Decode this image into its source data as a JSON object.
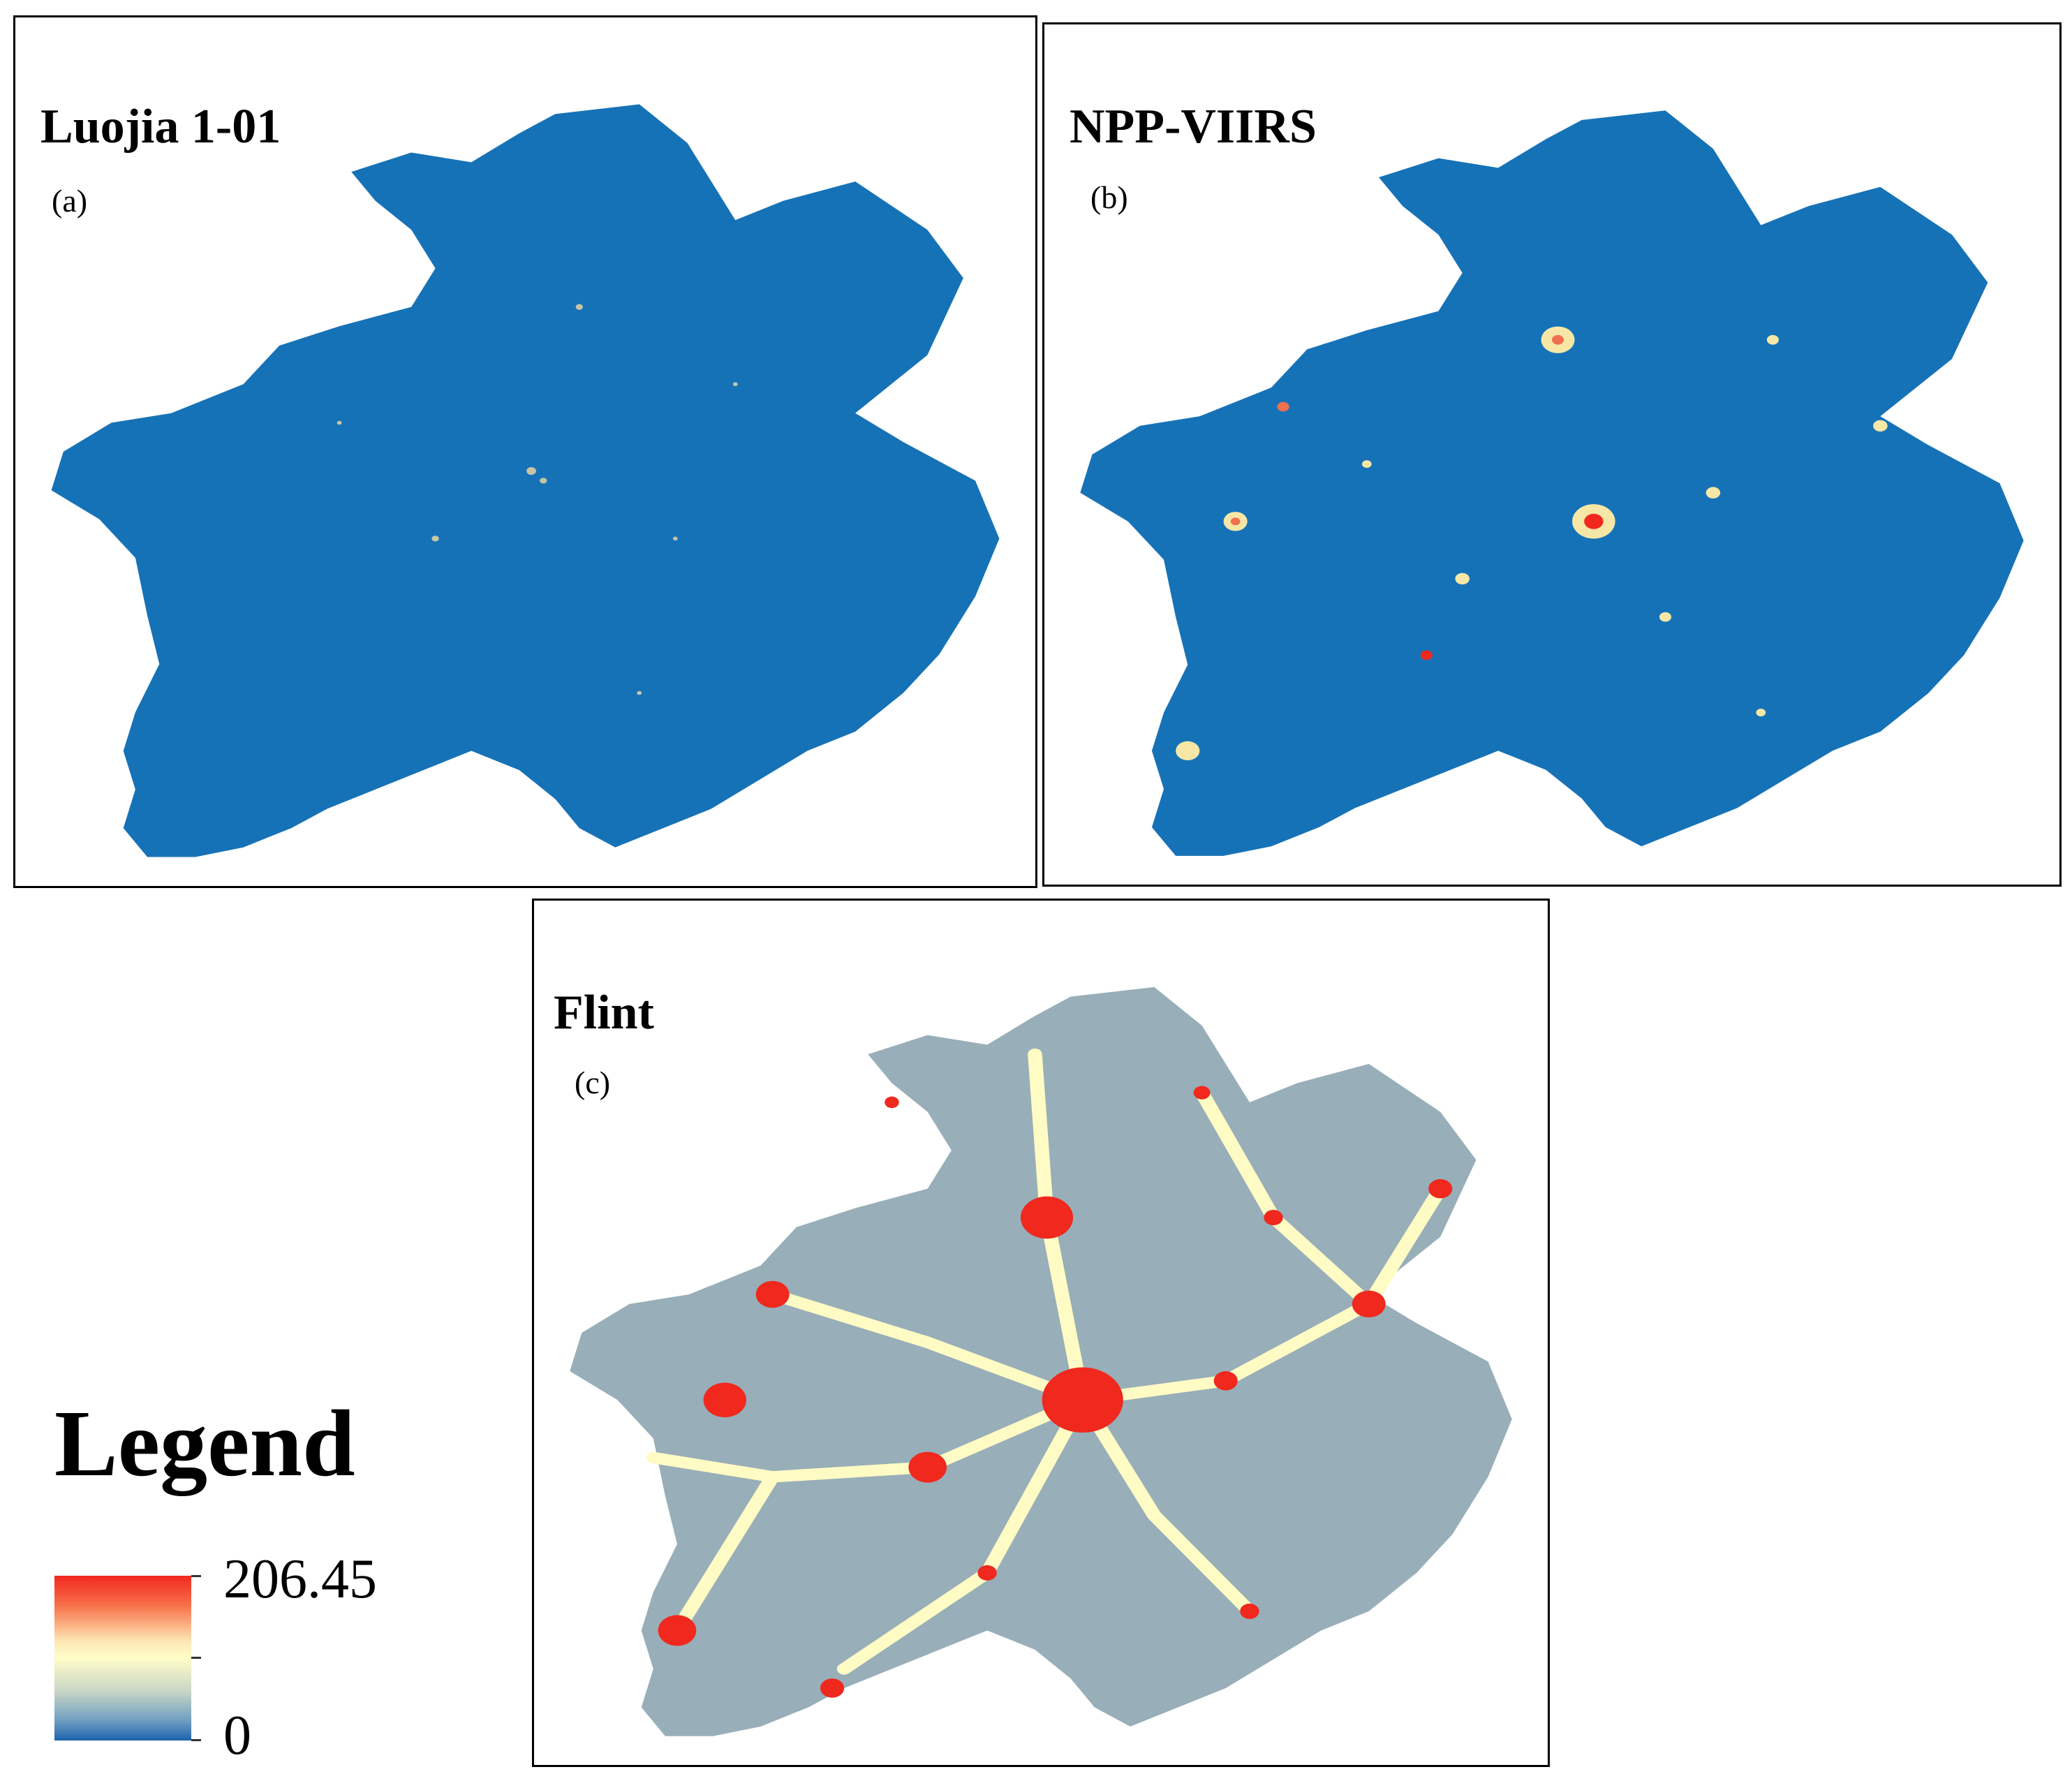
{
  "panels": [
    {
      "title": "Luojia 1-01",
      "label": "(a)",
      "base_color": "#1672b7"
    },
    {
      "title": "NPP-VIIRS",
      "label": "(b)",
      "base_color": "#1672b7"
    },
    {
      "title": "Flint",
      "label": "(c)",
      "base_color": "#98aeb8"
    }
  ],
  "legend": {
    "title": "Legend",
    "max_label": "206.45",
    "min_label": "0",
    "color_high": "#f0281e",
    "color_mid": "#fffdc8",
    "color_low": "#1a62ad"
  }
}
